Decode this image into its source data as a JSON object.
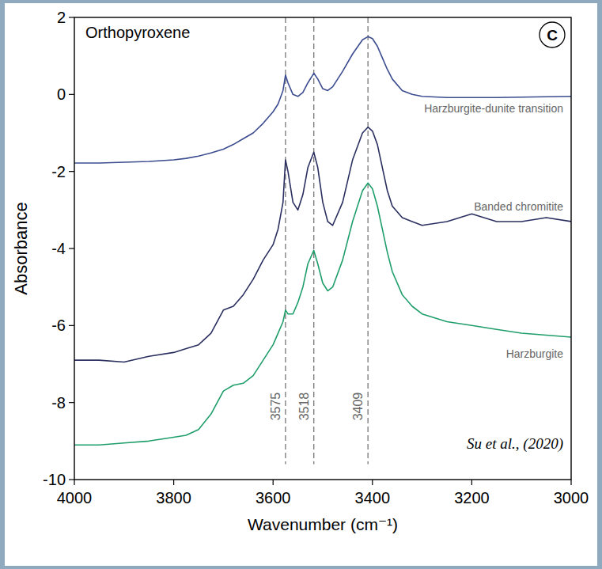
{
  "chart_data": {
    "type": "line",
    "title": "Orthopyroxene",
    "panel": "C",
    "source": "Su et al., (2020)",
    "x_label": "Wavenumber (cm⁻¹)",
    "y_label": "Absorbance",
    "xlim": [
      4000,
      3000
    ],
    "ylim": [
      -10,
      2
    ],
    "xticks": [
      4000,
      3800,
      3600,
      3400,
      3200,
      3000
    ],
    "yticks": [
      -10,
      -8,
      -6,
      -4,
      -2,
      0,
      2
    ],
    "peaks": [
      3575,
      3518,
      3409
    ],
    "grid": false,
    "x": [
      4000,
      3950,
      3900,
      3850,
      3800,
      3775,
      3750,
      3725,
      3700,
      3680,
      3660,
      3640,
      3620,
      3600,
      3590,
      3580,
      3575,
      3570,
      3560,
      3550,
      3540,
      3530,
      3518,
      3510,
      3500,
      3490,
      3480,
      3460,
      3440,
      3420,
      3409,
      3400,
      3390,
      3380,
      3370,
      3360,
      3340,
      3320,
      3300,
      3250,
      3200,
      3150,
      3100,
      3050,
      3000
    ],
    "series": [
      {
        "name": "Harzburgite-dunite transition",
        "color": "#3b4c8f",
        "values": [
          -1.78,
          -1.78,
          -1.76,
          -1.74,
          -1.7,
          -1.66,
          -1.6,
          -1.52,
          -1.42,
          -1.3,
          -1.15,
          -1.0,
          -0.75,
          -0.45,
          -0.25,
          0.1,
          0.5,
          0.3,
          0.0,
          -0.05,
          0.05,
          0.3,
          0.55,
          0.4,
          0.15,
          0.1,
          0.2,
          0.6,
          1.05,
          1.42,
          1.5,
          1.45,
          1.25,
          0.95,
          0.65,
          0.4,
          0.1,
          0.0,
          -0.05,
          -0.08,
          -0.08,
          -0.08,
          -0.07,
          -0.06,
          -0.05
        ]
      },
      {
        "name": "Banded chromitite",
        "color": "#2a2f60",
        "values": [
          -6.9,
          -6.9,
          -6.95,
          -6.8,
          -6.7,
          -6.6,
          -6.5,
          -6.2,
          -5.6,
          -5.5,
          -5.2,
          -4.8,
          -4.3,
          -3.9,
          -3.5,
          -2.8,
          -1.7,
          -2.0,
          -2.8,
          -3.0,
          -2.6,
          -1.9,
          -1.5,
          -1.9,
          -2.8,
          -3.3,
          -3.4,
          -2.8,
          -1.7,
          -1.0,
          -0.85,
          -0.95,
          -1.3,
          -1.9,
          -2.5,
          -2.9,
          -3.2,
          -3.3,
          -3.4,
          -3.3,
          -3.1,
          -3.3,
          -3.3,
          -3.2,
          -3.3
        ]
      },
      {
        "name": "Harzburgite",
        "color": "#1f9e6a",
        "values": [
          -9.1,
          -9.1,
          -9.05,
          -9.0,
          -8.9,
          -8.85,
          -8.7,
          -8.3,
          -7.7,
          -7.55,
          -7.5,
          -7.3,
          -6.9,
          -6.5,
          -6.2,
          -5.9,
          -5.6,
          -5.7,
          -5.7,
          -5.4,
          -5.0,
          -4.4,
          -4.05,
          -4.4,
          -4.9,
          -5.1,
          -5.0,
          -4.3,
          -3.3,
          -2.5,
          -2.3,
          -2.45,
          -2.9,
          -3.5,
          -4.1,
          -4.6,
          -5.2,
          -5.5,
          -5.7,
          -5.9,
          -6.0,
          -6.1,
          -6.2,
          -6.25,
          -6.3
        ]
      }
    ]
  }
}
